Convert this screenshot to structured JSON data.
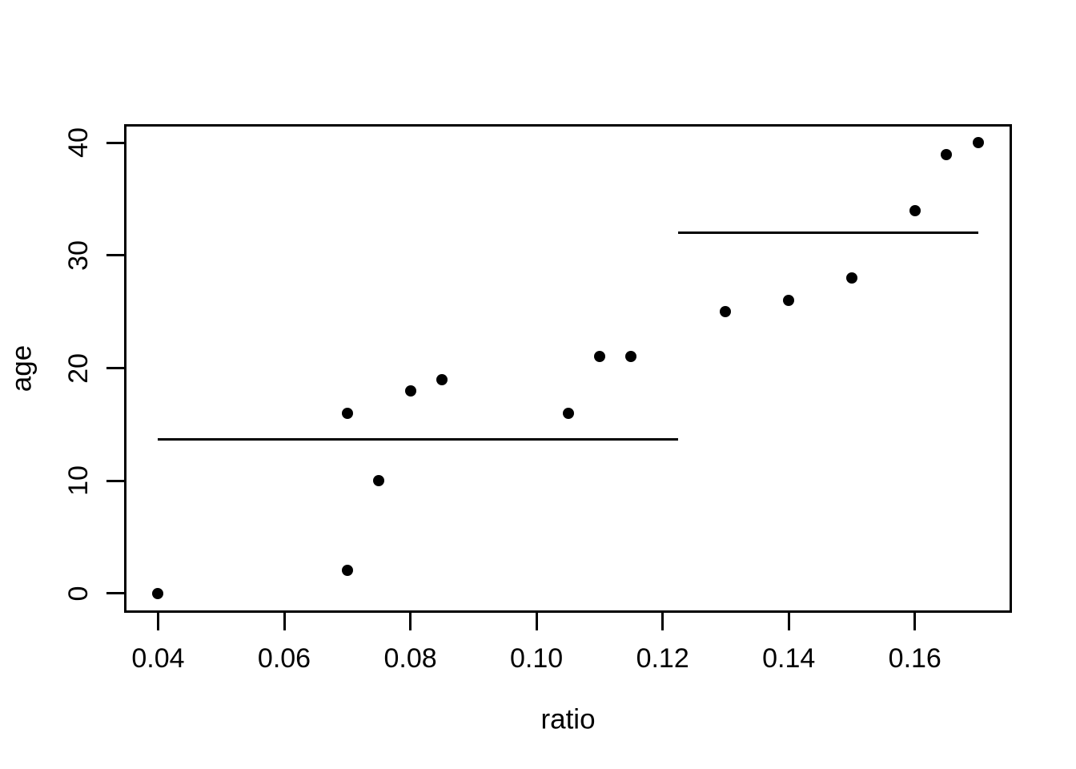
{
  "chart_data": {
    "type": "scatter",
    "title": "",
    "xlabel": "ratio",
    "ylabel": "age",
    "grid": false,
    "legend": "none",
    "background_color": "#ffffff",
    "point_color": "#000000",
    "line_color": "#000000",
    "axis_color": "#000000",
    "xlim": [
      0.0348,
      0.1752
    ],
    "ylim": [
      -1.6,
      41.6
    ],
    "x_ticks": [
      0.04,
      0.06,
      0.08,
      0.1,
      0.12,
      0.14,
      0.16
    ],
    "x_tick_labels": [
      "0.04",
      "0.06",
      "0.08",
      "0.10",
      "0.12",
      "0.14",
      "0.16"
    ],
    "y_ticks": [
      0,
      10,
      20,
      30,
      40
    ],
    "y_tick_labels": [
      "0",
      "10",
      "20",
      "30",
      "40"
    ],
    "points": [
      {
        "x": 0.04,
        "y": 0
      },
      {
        "x": 0.07,
        "y": 2
      },
      {
        "x": 0.07,
        "y": 16
      },
      {
        "x": 0.075,
        "y": 10
      },
      {
        "x": 0.08,
        "y": 18
      },
      {
        "x": 0.085,
        "y": 19
      },
      {
        "x": 0.105,
        "y": 16
      },
      {
        "x": 0.11,
        "y": 21
      },
      {
        "x": 0.115,
        "y": 21
      },
      {
        "x": 0.13,
        "y": 25
      },
      {
        "x": 0.14,
        "y": 26
      },
      {
        "x": 0.15,
        "y": 28
      },
      {
        "x": 0.16,
        "y": 34
      },
      {
        "x": 0.165,
        "y": 39
      },
      {
        "x": 0.17,
        "y": 40
      }
    ],
    "segments": [
      {
        "x1": 0.04,
        "x2": 0.1225,
        "y": 13.67
      },
      {
        "x1": 0.1225,
        "x2": 0.17,
        "y": 32
      }
    ]
  }
}
